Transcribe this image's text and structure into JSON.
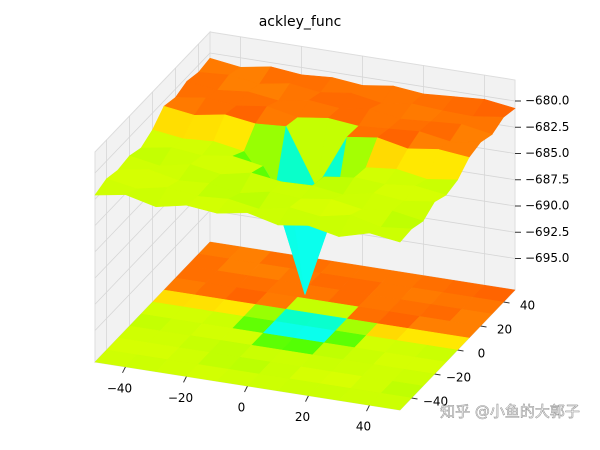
{
  "chart_data": {
    "type": "surface",
    "title": "ackley_func",
    "x": [
      -50,
      -40,
      -30,
      -20,
      -10,
      0,
      10,
      20,
      30,
      40,
      50
    ],
    "y": [
      -50,
      -40,
      -30,
      -20,
      -10,
      0,
      10,
      20,
      30,
      40,
      50
    ],
    "z": [
      [
        -682.1,
        -681.6,
        -682.3,
        -681.7,
        -682.0,
        -681.5,
        -682.2,
        -681.8,
        -682.4,
        -681.6,
        -682.0
      ],
      [
        -681.7,
        -682.2,
        -681.6,
        -682.0,
        -681.8,
        -682.3,
        -681.7,
        -682.1,
        -681.5,
        -682.2,
        -681.9
      ],
      [
        -682.0,
        -681.5,
        -682.1,
        -681.9,
        -682.4,
        -681.8,
        -682.0,
        -681.6,
        -682.1,
        -681.8,
        -682.3
      ],
      [
        -681.8,
        -682.3,
        -681.7,
        -682.2,
        -681.6,
        -682.0,
        -681.9,
        -682.3,
        -681.7,
        -682.0,
        -681.6
      ],
      [
        -682.2,
        -681.7,
        -682.0,
        -681.6,
        -682.1,
        -686.5,
        -682.2,
        -681.8,
        -682.0,
        -681.7,
        -682.1
      ],
      [
        -681.6,
        -682.0,
        -681.8,
        -682.3,
        -686.0,
        -695.0,
        -686.2,
        -682.0,
        -681.7,
        -682.2,
        -681.8
      ],
      [
        -680.5,
        -680.9,
        -680.4,
        -680.8,
        -680.6,
        -686.0,
        -680.7,
        -680.3,
        -680.9,
        -680.5,
        -680.8
      ],
      [
        -680.8,
        -680.4,
        -680.7,
        -680.3,
        -680.9,
        -680.5,
        -680.8,
        -680.6,
        -680.4,
        -680.9,
        -680.5
      ],
      [
        -680.4,
        -680.8,
        -680.5,
        -680.9,
        -680.4,
        -680.7,
        -680.3,
        -680.8,
        -680.6,
        -680.4,
        -680.9
      ],
      [
        -680.7,
        -680.5,
        -680.9,
        -680.4,
        -680.8,
        -680.4,
        -680.9,
        -680.5,
        -680.7,
        -680.8,
        -680.4
      ],
      [
        -680.5,
        -680.9,
        -680.4,
        -680.7,
        -680.5,
        -680.8,
        -680.4,
        -680.7,
        -680.5,
        -680.3,
        -680.7
      ]
    ],
    "xlim": [
      -50,
      50
    ],
    "ylim": [
      -50,
      50
    ],
    "zlim": [
      -698,
      -678
    ],
    "xticks": [
      {
        "value": -40,
        "label": "−40"
      },
      {
        "value": -20,
        "label": "−20"
      },
      0,
      20,
      40
    ],
    "yticks": [
      {
        "value": -40,
        "label": "−40"
      },
      {
        "value": -20,
        "label": "−20"
      },
      0,
      20,
      40
    ],
    "zticks": [
      {
        "value": -680,
        "label": "−680.0"
      },
      {
        "value": -682.5,
        "label": "−682.5"
      },
      {
        "value": -685,
        "label": "−685.0"
      },
      {
        "value": -687.5,
        "label": "−687.5"
      },
      {
        "value": -690,
        "label": "−690.0"
      },
      {
        "value": -692.5,
        "label": "−692.5"
      },
      {
        "value": -695,
        "label": "−695.0"
      }
    ],
    "grid": true,
    "colormap": "rainbow",
    "contour_floor": true
  },
  "watermark": "知乎 @小鱼的大郭子"
}
